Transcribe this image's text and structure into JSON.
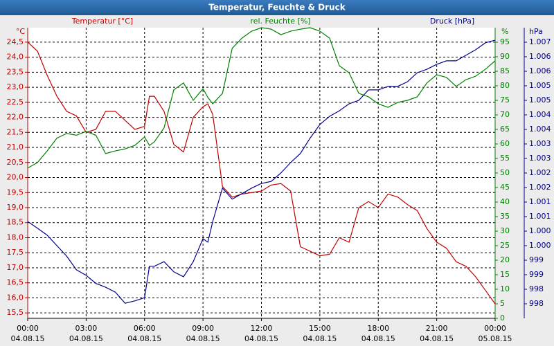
{
  "chart_data": {
    "type": "line",
    "title": "Temperatur, Feuchte & Druck",
    "y_label": "Temperatur [°C]",
    "y_unit": "°C",
    "y2_label": "rel. Feuchte [%]",
    "y2_unit": "%",
    "y3_label": "Druck [hPa]",
    "y3_unit": "hPa",
    "grid": true,
    "x": [
      0,
      0.5,
      1,
      1.5,
      2,
      2.5,
      3,
      3.5,
      4,
      4.5,
      5,
      5.5,
      6,
      6.25,
      6.5,
      7,
      7.5,
      8,
      8.5,
      9,
      9.25,
      9.5,
      10,
      10.5,
      11,
      11.5,
      12,
      12.5,
      13,
      13.5,
      14,
      14.5,
      15,
      15.5,
      16,
      16.5,
      17,
      17.5,
      18,
      18.5,
      19,
      19.5,
      20,
      20.5,
      21,
      21.5,
      22,
      22.5,
      23,
      23.5,
      24
    ],
    "xlim": [
      0,
      24
    ],
    "xticks": [
      {
        "value": 0,
        "label": "00:00"
      },
      {
        "value": 3,
        "label": "03:00"
      },
      {
        "value": 6,
        "label": "06:00"
      },
      {
        "value": 9,
        "label": "09:00"
      },
      {
        "value": 12,
        "label": "12:00"
      },
      {
        "value": 15,
        "label": "15:00"
      },
      {
        "value": 18,
        "label": "18:00"
      },
      {
        "value": 21,
        "label": "21:00"
      },
      {
        "value": 24,
        "label": "00:00"
      }
    ],
    "xtick_dates": [
      "04.08.15",
      "04.08.15",
      "04.08.15",
      "04.08.15",
      "04.08.15",
      "04.08.15",
      "04.08.15",
      "04.08.15",
      "05.08.15"
    ],
    "ylim": [
      15.32,
      24.98
    ],
    "yticks": [
      {
        "value": 15.5,
        "label": "15,5"
      },
      {
        "value": 16,
        "label": "16,0"
      },
      {
        "value": 16.5,
        "label": "16,5"
      },
      {
        "value": 17,
        "label": "17,0"
      },
      {
        "value": 17.5,
        "label": "17,5"
      },
      {
        "value": 18,
        "label": "18,0"
      },
      {
        "value": 18.5,
        "label": "18,5"
      },
      {
        "value": 19,
        "label": "19,0"
      },
      {
        "value": 19.5,
        "label": "19,5"
      },
      {
        "value": 20,
        "label": "20,0"
      },
      {
        "value": 20.5,
        "label": "20,5"
      },
      {
        "value": 21,
        "label": "21,0"
      },
      {
        "value": 21.5,
        "label": "21,5"
      },
      {
        "value": 22,
        "label": "22,0"
      },
      {
        "value": 22.5,
        "label": "22,5"
      },
      {
        "value": 23,
        "label": "23,0"
      },
      {
        "value": 23.5,
        "label": "23,5"
      },
      {
        "value": 24,
        "label": "24,0"
      },
      {
        "value": 24.5,
        "label": "24,5"
      }
    ],
    "y2lim": [
      0,
      100
    ],
    "y2ticks": [
      0,
      5,
      10,
      15,
      20,
      25,
      30,
      35,
      40,
      45,
      50,
      55,
      60,
      65,
      70,
      75,
      80,
      85,
      90,
      95
    ],
    "y3lim": [
      997.4,
      1007.4
    ],
    "y3ticks": [
      {
        "value": 997.9,
        "label": "998"
      },
      {
        "value": 998.4,
        "label": "998"
      },
      {
        "value": 998.9,
        "label": "999"
      },
      {
        "value": 999.4,
        "label": "999"
      },
      {
        "value": 999.9,
        "label": "1.000"
      },
      {
        "value": 1000.4,
        "label": "1.000"
      },
      {
        "value": 1000.9,
        "label": "1.001"
      },
      {
        "value": 1001.4,
        "label": "1.001"
      },
      {
        "value": 1001.9,
        "label": "1.002"
      },
      {
        "value": 1002.4,
        "label": "1.002"
      },
      {
        "value": 1002.9,
        "label": "1.003"
      },
      {
        "value": 1003.4,
        "label": "1.003"
      },
      {
        "value": 1003.9,
        "label": "1.004"
      },
      {
        "value": 1004.4,
        "label": "1.004"
      },
      {
        "value": 1004.9,
        "label": "1.005"
      },
      {
        "value": 1005.4,
        "label": "1.005"
      },
      {
        "value": 1005.9,
        "label": "1.006"
      },
      {
        "value": 1006.4,
        "label": "1.006"
      },
      {
        "value": 1006.9,
        "label": "1.007"
      }
    ],
    "y_color": "#c00000",
    "y2_color": "#008000",
    "y3_color": "#00008b",
    "series": [
      {
        "name": "Temperatur [°C]",
        "color": "#c00000",
        "axis": "y",
        "values": [
          24.5,
          24.2,
          23.4,
          22.7,
          22.2,
          22.05,
          21.5,
          21.6,
          22.2,
          22.2,
          21.9,
          21.6,
          21.7,
          22.7,
          22.7,
          22.2,
          21.1,
          20.85,
          22.0,
          22.35,
          22.45,
          22.1,
          19.7,
          19.35,
          19.45,
          19.5,
          19.55,
          19.75,
          19.8,
          19.55,
          17.7,
          17.55,
          17.4,
          17.45,
          18.0,
          17.85,
          19.0,
          19.2,
          19.0,
          19.45,
          19.35,
          19.1,
          18.9,
          18.3,
          17.85,
          17.65,
          17.2,
          17.05,
          16.7,
          16.25,
          15.8
        ]
      },
      {
        "name": "rel. Feuchte [%]",
        "color": "#008000",
        "axis": "y2",
        "values": [
          51.7,
          53.6,
          57.6,
          62,
          63.6,
          63,
          64.3,
          63,
          56.7,
          57.6,
          58.3,
          59.5,
          62.4,
          59.5,
          60.7,
          65.5,
          78.6,
          81,
          75,
          79,
          76,
          73.8,
          77.4,
          92.9,
          96.4,
          98.8,
          100,
          99.5,
          97.6,
          98.8,
          99.5,
          100,
          98.8,
          96.4,
          86.9,
          84.5,
          77.4,
          76.2,
          73.8,
          72.6,
          74.3,
          75,
          76.2,
          81,
          83.8,
          82.9,
          79.8,
          82.1,
          83.3,
          85.7,
          88.6
        ]
      },
      {
        "name": "Druck [hPa]",
        "color": "#00008b",
        "axis": "y3",
        "values": [
          1000.73,
          1000.5,
          1000.26,
          999.9,
          999.54,
          999.07,
          998.88,
          998.6,
          998.47,
          998.3,
          997.92,
          998.0,
          998.11,
          999.19,
          999.19,
          999.35,
          999.0,
          998.83,
          999.35,
          1000.14,
          1000.02,
          1000.73,
          1001.88,
          1001.5,
          1001.69,
          1001.88,
          1002.04,
          1002.11,
          1002.4,
          1002.76,
          1003.07,
          1003.6,
          1004.07,
          1004.35,
          1004.54,
          1004.78,
          1004.9,
          1005.26,
          1005.26,
          1005.38,
          1005.38,
          1005.54,
          1005.85,
          1005.97,
          1006.14,
          1006.26,
          1006.26,
          1006.45,
          1006.64,
          1006.88,
          1006.97
        ]
      }
    ]
  }
}
